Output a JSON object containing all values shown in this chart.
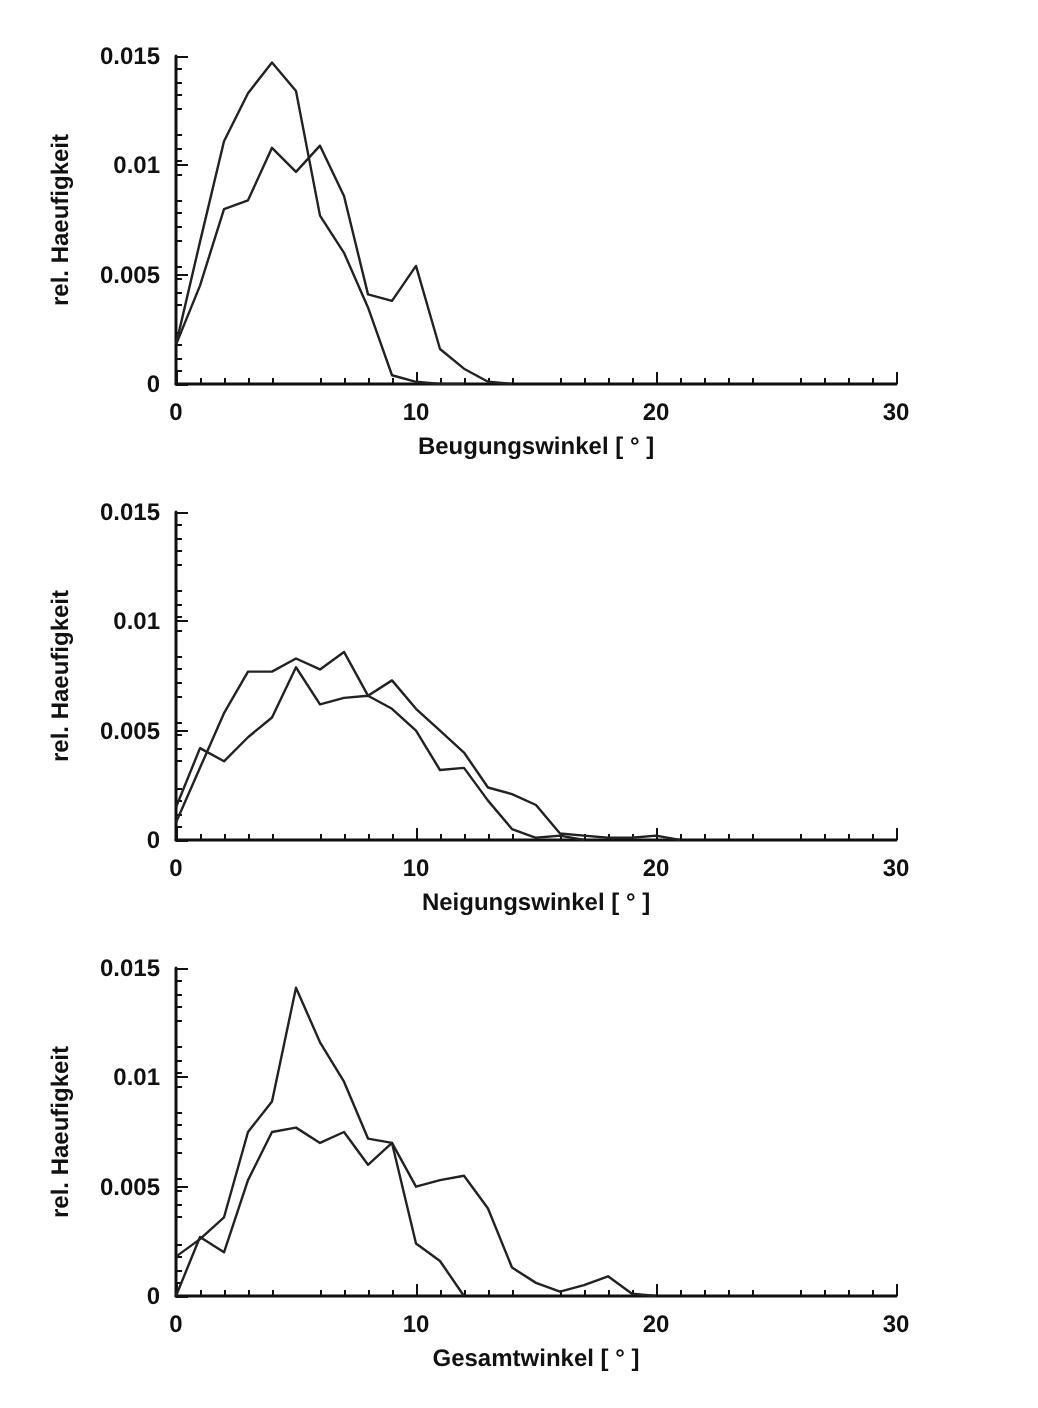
{
  "chart_data": [
    {
      "type": "line",
      "xlabel": "Beugungswinkel [ ° ]",
      "ylabel": "rel. Haeufigkeit",
      "xlim": [
        0,
        30
      ],
      "xticks": [
        0,
        10,
        20,
        30
      ],
      "ylim": [
        0,
        0.015
      ],
      "yticks": [
        0,
        0.005,
        0.01,
        0.015
      ],
      "grid": false,
      "marker": "none",
      "line_style": "solid",
      "series": [
        {
          "color": "#222222",
          "x": [
            0,
            1,
            2,
            3,
            4,
            5,
            6,
            7,
            8,
            9,
            10,
            11,
            12
          ],
          "values": [
            0.0018,
            0.0065,
            0.0111,
            0.0133,
            0.0147,
            0.0134,
            0.0077,
            0.006,
            0.0035,
            0.0004,
            0.0001,
            0,
            0
          ]
        },
        {
          "color": "#222222",
          "x": [
            0,
            1,
            2,
            3,
            4,
            5,
            6,
            7,
            8,
            9,
            10,
            11,
            12,
            13,
            14
          ],
          "values": [
            0.0018,
            0.0045,
            0.008,
            0.0084,
            0.0108,
            0.0097,
            0.0109,
            0.0086,
            0.0041,
            0.0038,
            0.0054,
            0.0016,
            0.0007,
            0.0001,
            0
          ]
        }
      ]
    },
    {
      "type": "line",
      "xlabel": "Neigungswinkel [ ° ]",
      "ylabel": "rel. Haeufigkeit",
      "xlim": [
        0,
        30
      ],
      "xticks": [
        0,
        10,
        20,
        30
      ],
      "ylim": [
        0,
        0.015
      ],
      "yticks": [
        0,
        0.005,
        0.01,
        0.015
      ],
      "grid": false,
      "marker": "none",
      "line_style": "solid",
      "series": [
        {
          "color": "#222222",
          "x": [
            0,
            1,
            2,
            3,
            4,
            5,
            6,
            7,
            8,
            9,
            10,
            11,
            12,
            13,
            14,
            15,
            16,
            17,
            18,
            19,
            20,
            21
          ],
          "values": [
            0.0008,
            0.0033,
            0.0058,
            0.0077,
            0.0077,
            0.0083,
            0.0078,
            0.0086,
            0.0066,
            0.0073,
            0.006,
            0.005,
            0.004,
            0.0024,
            0.0021,
            0.0016,
            0.0003,
            0.0002,
            0.0001,
            0.0001,
            0.0002,
            0
          ]
        },
        {
          "color": "#222222",
          "x": [
            0,
            1,
            2,
            3,
            4,
            5,
            6,
            7,
            8,
            9,
            10,
            11,
            12,
            13,
            14,
            15,
            16,
            17
          ],
          "values": [
            0.0015,
            0.0042,
            0.0036,
            0.0047,
            0.0056,
            0.0079,
            0.0062,
            0.0065,
            0.0066,
            0.006,
            0.005,
            0.0032,
            0.0033,
            0.0018,
            0.0005,
            0.0001,
            0.0002,
            0
          ]
        }
      ]
    },
    {
      "type": "line",
      "xlabel": "Gesamtwinkel [ ° ]",
      "ylabel": "rel. Haeufigkeit",
      "xlim": [
        0,
        30
      ],
      "xticks": [
        0,
        10,
        20,
        30
      ],
      "ylim": [
        0,
        0.015
      ],
      "yticks": [
        0,
        0.005,
        0.01,
        0.015
      ],
      "grid": false,
      "marker": "none",
      "line_style": "solid",
      "series": [
        {
          "color": "#222222",
          "x": [
            0,
            1,
            2,
            3,
            4,
            5,
            6,
            7,
            8,
            9,
            10,
            11,
            12,
            13,
            14,
            15,
            16,
            17,
            18,
            19,
            20
          ],
          "values": [
            0.0018,
            0.0026,
            0.0036,
            0.0075,
            0.0089,
            0.0141,
            0.0116,
            0.0098,
            0.0072,
            0.007,
            0.005,
            0.0053,
            0.0055,
            0.004,
            0.0013,
            0.0006,
            0.0002,
            0.0005,
            0.0009,
            0.0001,
            0
          ]
        },
        {
          "color": "#222222",
          "x": [
            0,
            1,
            2,
            3,
            4,
            5,
            6,
            7,
            8,
            9,
            10,
            11,
            12
          ],
          "values": [
            0,
            0.0027,
            0.002,
            0.0053,
            0.0075,
            0.0077,
            0.007,
            0.0075,
            0.006,
            0.007,
            0.0024,
            0.0016,
            0
          ]
        }
      ]
    }
  ]
}
